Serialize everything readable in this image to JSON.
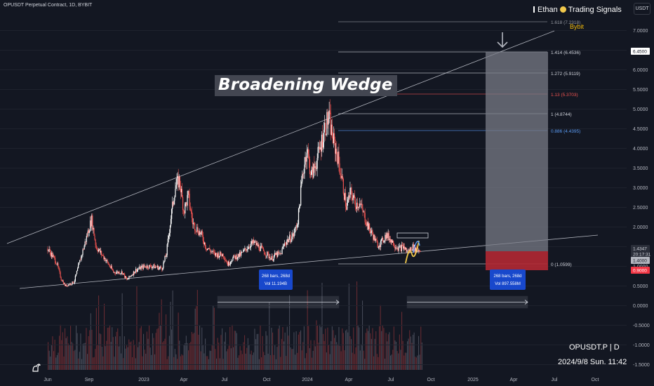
{
  "header": {
    "title": "OPUSDT Perpetual Contract, 1D, BYBIT"
  },
  "brand": {
    "text_left": "Ethan",
    "text_right": "Trading Signals",
    "exchange": "Bybit"
  },
  "currency_button": "USDT",
  "annotation": {
    "title": "Broadening Wedge"
  },
  "footer": {
    "symbol": "OPUSDT.P | D",
    "datetime": "2024/9/8 Sun. 11:42"
  },
  "chart_data": {
    "type": "candlestick",
    "ylim": [
      -1.6,
      7.3
    ],
    "y_ticks": [
      "7.0000",
      "6.5000",
      "6.0000",
      "5.5000",
      "5.0000",
      "4.5000",
      "4.0000",
      "3.5000",
      "3.0000",
      "2.5000",
      "2.0000",
      "1.5000",
      "1.0000",
      "0.5000",
      "0.0000",
      "-0.5000",
      "-1.0000",
      "-1.5000"
    ],
    "x_ticks": [
      "Jun",
      "Sep",
      "2023",
      "Apr",
      "Jul",
      "Oct",
      "2024",
      "Apr",
      "Jul",
      "Oct",
      "2025",
      "Apr",
      "Jul",
      "Oct"
    ],
    "price_path": [
      [
        0,
        1.45
      ],
      [
        2,
        1.1
      ],
      [
        3,
        0.7
      ],
      [
        4,
        0.5
      ],
      [
        6,
        0.6
      ],
      [
        7,
        1.0
      ],
      [
        9,
        1.8
      ],
      [
        10,
        2.2
      ],
      [
        11,
        1.5
      ],
      [
        13,
        1.2
      ],
      [
        15,
        0.85
      ],
      [
        17,
        0.85
      ],
      [
        18,
        0.65
      ],
      [
        20,
        0.9
      ],
      [
        22,
        1.0
      ],
      [
        24,
        1.0
      ],
      [
        26,
        0.95
      ],
      [
        27,
        1.3
      ],
      [
        28,
        2.2
      ],
      [
        29,
        3.0
      ],
      [
        30,
        3.2
      ],
      [
        31,
        2.4
      ],
      [
        32,
        2.8
      ],
      [
        33,
        2.1
      ],
      [
        35,
        1.8
      ],
      [
        36,
        1.5
      ],
      [
        38,
        1.3
      ],
      [
        40,
        1.3
      ],
      [
        41,
        1.05
      ],
      [
        42,
        1.2
      ],
      [
        44,
        1.3
      ],
      [
        46,
        1.55
      ],
      [
        47,
        1.6
      ],
      [
        49,
        1.4
      ],
      [
        51,
        1.2
      ],
      [
        52,
        1.3
      ],
      [
        53,
        1.3
      ],
      [
        54,
        1.6
      ],
      [
        56,
        1.8
      ],
      [
        57,
        2.2
      ],
      [
        58,
        3.3
      ],
      [
        59,
        4.0
      ],
      [
        60,
        3.3
      ],
      [
        61,
        3.6
      ],
      [
        62,
        4.0
      ],
      [
        63,
        4.5
      ],
      [
        64,
        4.8
      ],
      [
        65,
        4.2
      ],
      [
        66,
        3.8
      ],
      [
        67,
        3.2
      ],
      [
        68,
        2.5
      ],
      [
        69,
        2.9
      ],
      [
        70,
        2.6
      ],
      [
        71,
        2.6
      ],
      [
        72,
        2.3
      ],
      [
        73,
        2.0
      ],
      [
        74,
        1.8
      ],
      [
        75,
        1.55
      ],
      [
        76,
        1.6
      ],
      [
        77,
        1.8
      ],
      [
        78,
        1.7
      ],
      [
        79,
        1.55
      ],
      [
        80,
        1.45
      ],
      [
        81,
        1.5
      ],
      [
        82,
        1.35
      ],
      [
        83,
        1.5
      ],
      [
        84,
        1.42
      ],
      [
        85,
        1.43
      ]
    ],
    "wedge_lines": {
      "upper": {
        "from": [
          0,
          1.55
        ],
        "to": [
          150,
          7.1
        ]
      },
      "lower": {
        "from": [
          0,
          0.45
        ],
        "to": [
          150,
          1.8
        ]
      }
    },
    "fibonacci_levels": [
      {
        "ratio": "1.618",
        "label": "1.618 (7.2318)",
        "value": 7.2318,
        "color": "#9598a1"
      },
      {
        "ratio": "1.414",
        "label": "1.414 (6.4536)",
        "value": 6.4536,
        "color": "#d1d4dc"
      },
      {
        "ratio": "1.272",
        "label": "1.272 (5.9119)",
        "value": 5.9119,
        "color": "#d1d4dc"
      },
      {
        "ratio": "1.13",
        "label": "1.13 (5.3703)",
        "value": 5.3703,
        "color": "#ef5350"
      },
      {
        "ratio": "1",
        "label": "1 (4.8744)",
        "value": 4.8744,
        "color": "#d1d4dc"
      },
      {
        "ratio": "0.886",
        "label": "0.886 (4.4395)",
        "value": 4.4395,
        "color": "#5b9cf6"
      },
      {
        "ratio": "0",
        "label": "0 (1.0599)",
        "value": 1.0599,
        "color": "#d1d4dc"
      }
    ],
    "position_tool": {
      "target": 6.45,
      "stop": 0.9,
      "entry_top": 1.4
    },
    "range_labels": [
      {
        "line1": "268 bars, 268d",
        "line2": "Vol 11.194B"
      },
      {
        "line1": "268 bars, 268d",
        "line2": "Vol 897.558M"
      }
    ],
    "price_tags": [
      {
        "label": "6.4500",
        "value": 6.45,
        "bg": "#ffffff",
        "fg": "#131722"
      },
      {
        "label": "1.4347",
        "value": 1.4347,
        "bg": "#2a2e39",
        "fg": "#d1d4dc"
      },
      {
        "label": "20:17:31",
        "value": 1.3,
        "bg": "#2a2e39",
        "fg": "#d1d4dc"
      },
      {
        "label": "1.4000",
        "value": 1.16,
        "bg": "#b2b5be",
        "fg": "#131722"
      },
      {
        "label": "0.9000",
        "value": 0.9,
        "bg": "#f23645",
        "fg": "#ffffff"
      }
    ],
    "colors": {
      "background": "#131722",
      "up": "#ffffff",
      "down": "#ef5350",
      "grid": "#1e222d",
      "position_gray": "#787b86",
      "position_red": "#b22833"
    }
  }
}
